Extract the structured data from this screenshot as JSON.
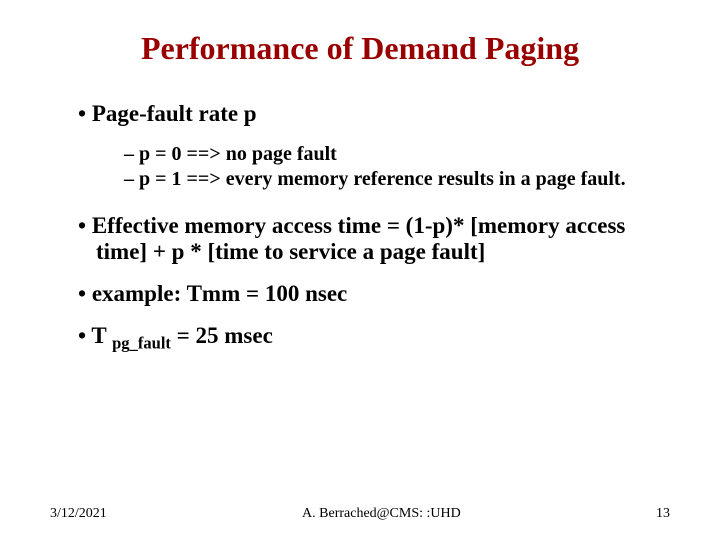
{
  "title": {
    "text": "Performance of Demand Paging",
    "color": "#990000",
    "fontsize": 32
  },
  "body": {
    "fontsize": 23,
    "sub_fontsize": 20,
    "color": "#000000",
    "items": [
      {
        "level": 1,
        "text": "Page-fault rate p"
      },
      {
        "level": 2,
        "text": "p = 0 ==> no page fault"
      },
      {
        "level": 2,
        "text": "p = 1 ==> every memory reference results in a page fault."
      },
      {
        "level": 0,
        "text": ""
      },
      {
        "level": 1,
        "text": "Effective memory access time = (1-p)* [memory access time] + p * [time to service a page fault]"
      },
      {
        "level": 1,
        "text": "example: Tmm = 100 nsec"
      },
      {
        "level": 1,
        "text_parts": [
          "T ",
          "pg_fault",
          " = 25 msec"
        ],
        "subscript_index": 1
      }
    ]
  },
  "footer": {
    "date": "3/12/2021",
    "center": "A. Berrached@CMS: :UHD",
    "page": "13",
    "fontsize": 14,
    "color": "#000000"
  },
  "background_color": "#ffffff"
}
